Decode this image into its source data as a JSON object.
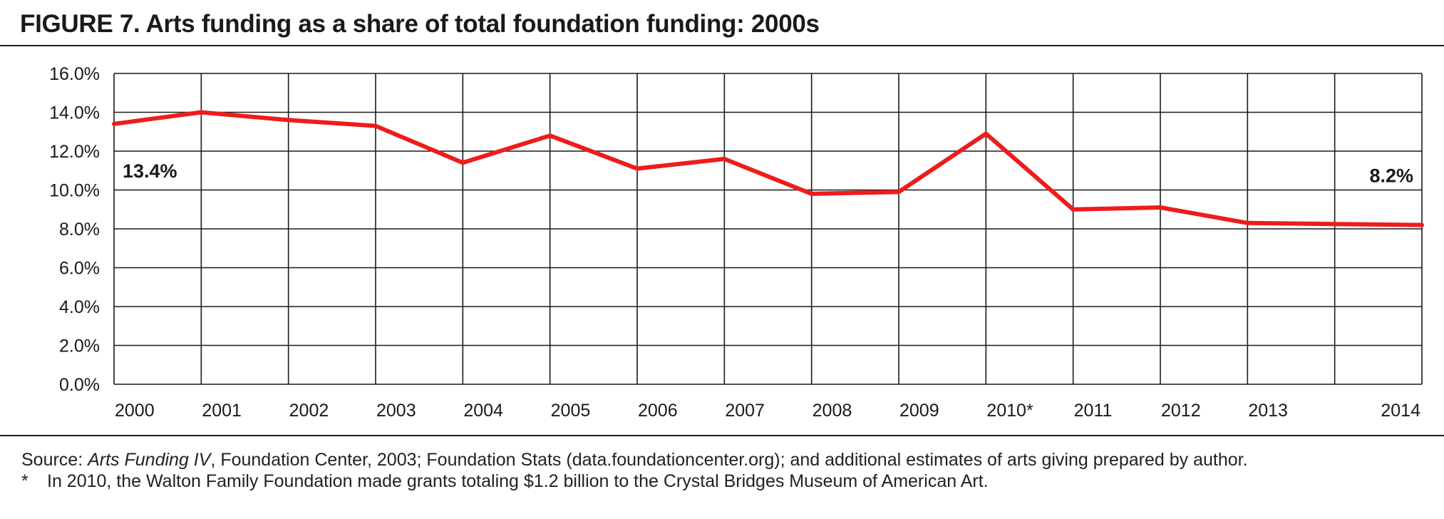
{
  "figure": {
    "title": "FIGURE 7. Arts funding as a share of total foundation funding: 2000s"
  },
  "colors": {
    "line": "#ee1c1c",
    "grid": "#1a1a1a",
    "text": "#1a1a1a"
  },
  "chart_data": {
    "type": "line",
    "title": "FIGURE 7. Arts funding as a share of total foundation funding: 2000s",
    "xlabel": "",
    "ylabel": "",
    "categories": [
      "2000",
      "2001",
      "2002",
      "2003",
      "2004",
      "2005",
      "2006",
      "2007",
      "2008",
      "2009",
      "2010*",
      "2011",
      "2012",
      "2013",
      "2014"
    ],
    "series": [
      {
        "name": "Arts funding share",
        "values": [
          13.4,
          14.0,
          13.6,
          13.3,
          11.4,
          12.8,
          11.1,
          11.6,
          9.8,
          9.9,
          12.9,
          9.0,
          9.1,
          8.3,
          8.2
        ]
      }
    ],
    "ylim": [
      0,
      16
    ],
    "yticks": [
      0,
      2,
      4,
      6,
      8,
      10,
      12,
      14,
      16
    ],
    "ytick_labels": [
      "0.0%",
      "2.0%",
      "4.0%",
      "6.0%",
      "8.0%",
      "10.0%",
      "12.0%",
      "14.0%",
      "16.0%"
    ],
    "grid": true,
    "annotations": [
      {
        "text": "13.4%",
        "category": "2000",
        "placement": "below-left"
      },
      {
        "text": "8.2%",
        "category": "2014",
        "placement": "above-right"
      }
    ]
  },
  "source": {
    "prefix": "Source: ",
    "italic": "Arts Funding IV",
    "rest": ", Foundation Center, 2003; Foundation Stats (data.foundationcenter.org); and additional estimates of arts giving prepared by author."
  },
  "footnote": {
    "marker": "*",
    "text": "In 2010, the Walton Family Foundation made grants totaling $1.2 billion to the Crystal Bridges Museum of American Art."
  }
}
